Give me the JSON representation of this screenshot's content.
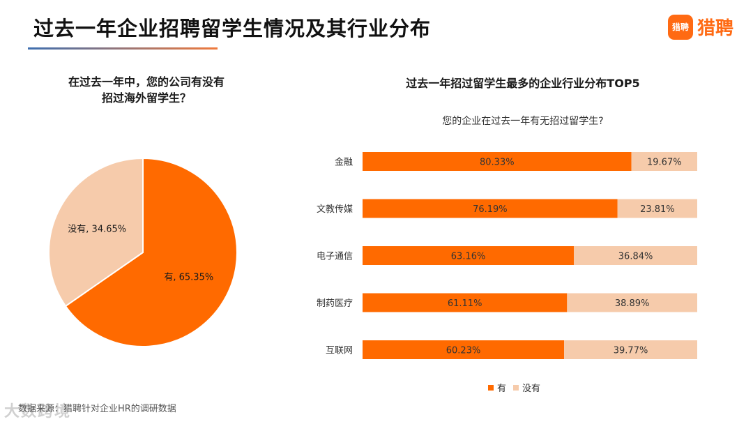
{
  "header": {
    "title": "过去一年企业招聘留学生情况及其行业分布",
    "logo_mark": "猎聘",
    "logo_text": "猎聘"
  },
  "colors": {
    "primary": "#ff6a00",
    "secondary": "#f6cbab"
  },
  "source": "数据来源：猎聘针对企业HR的调研数据",
  "watermark": "大数跨境",
  "chart_data": [
    {
      "type": "pie",
      "title_lines": [
        "在过去一年中，您的公司有没有",
        "招过海外留学生？"
      ],
      "slices": [
        {
          "label": "有",
          "value": 65.35,
          "display": "有, 65.35%"
        },
        {
          "label": "没有",
          "value": 34.65,
          "display": "没有, 34.65%"
        }
      ]
    },
    {
      "type": "bar",
      "orientation": "horizontal",
      "stacked": true,
      "title": "过去一年招过留学生最多的企业行业分布TOP5",
      "subtitle": "您的企业在过去一年有无招过留学生?",
      "categories": [
        "金融",
        "文教传媒",
        "电子通信",
        "制药医疗",
        "互联网"
      ],
      "series": [
        {
          "name": "有",
          "values": [
            80.33,
            76.19,
            63.16,
            61.11,
            60.23
          ],
          "labels": [
            "80.33%",
            "76.19%",
            "63.16%",
            "61.11%",
            "60.23%"
          ]
        },
        {
          "name": "没有",
          "values": [
            19.67,
            23.81,
            36.84,
            38.89,
            39.77
          ],
          "labels": [
            "19.67%",
            "23.81%",
            "36.84%",
            "38.89%",
            "39.77%"
          ]
        }
      ],
      "xlim": [
        0,
        100
      ],
      "legend_position": "bottom",
      "grid": false
    }
  ]
}
